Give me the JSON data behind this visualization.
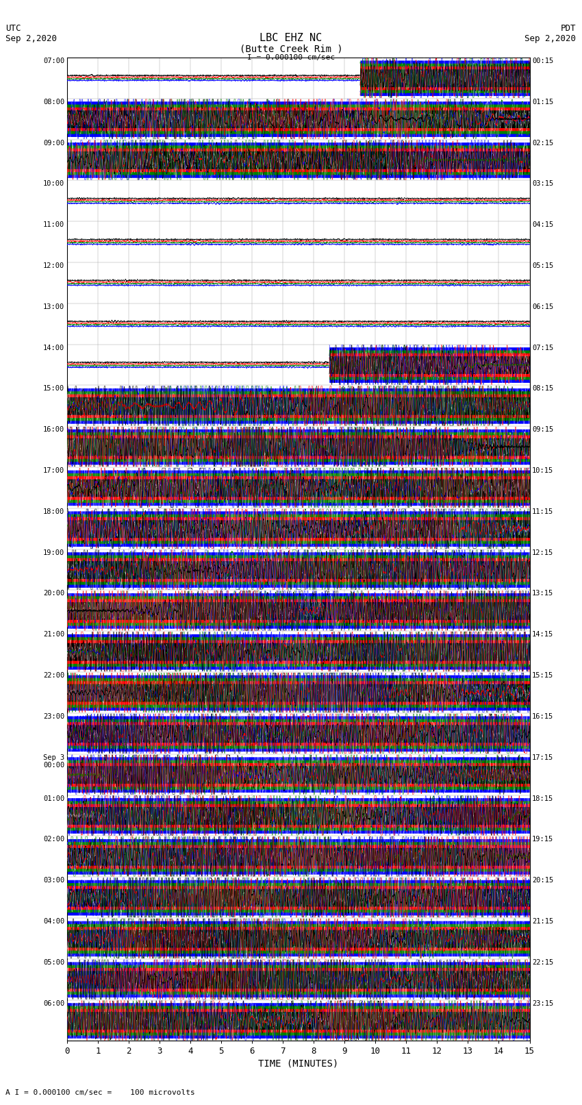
{
  "title_line1": "LBC EHZ NC",
  "title_line2": "(Butte Creek Rim )",
  "scale_label": "I = 0.000100 cm/sec",
  "utc_label": "UTC",
  "utc_date": "Sep 2,2020",
  "pdt_label": "PDT",
  "pdt_date": "Sep 2,2020",
  "xlabel": "TIME (MINUTES)",
  "footer_label": "A I = 0.000100 cm/sec =    100 microvolts",
  "xlim": [
    0,
    15
  ],
  "xticks": [
    0,
    1,
    2,
    3,
    4,
    5,
    6,
    7,
    8,
    9,
    10,
    11,
    12,
    13,
    14,
    15
  ],
  "left_times": [
    "07:00",
    "08:00",
    "09:00",
    "10:00",
    "11:00",
    "12:00",
    "13:00",
    "14:00",
    "15:00",
    "16:00",
    "17:00",
    "18:00",
    "19:00",
    "20:00",
    "21:00",
    "22:00",
    "23:00",
    "Sep 3\n00:00",
    "01:00",
    "02:00",
    "03:00",
    "04:00",
    "05:00",
    "06:00"
  ],
  "right_times": [
    "00:15",
    "01:15",
    "02:15",
    "03:15",
    "04:15",
    "05:15",
    "06:15",
    "07:15",
    "08:15",
    "09:15",
    "10:15",
    "11:15",
    "12:15",
    "13:15",
    "14:15",
    "15:15",
    "16:15",
    "17:15",
    "18:15",
    "19:15",
    "20:15",
    "21:15",
    "22:15",
    "23:15"
  ],
  "n_rows": 24,
  "colors": {
    "background": "#ffffff"
  },
  "fig_width": 8.5,
  "fig_height": 16.13,
  "dpi": 100
}
